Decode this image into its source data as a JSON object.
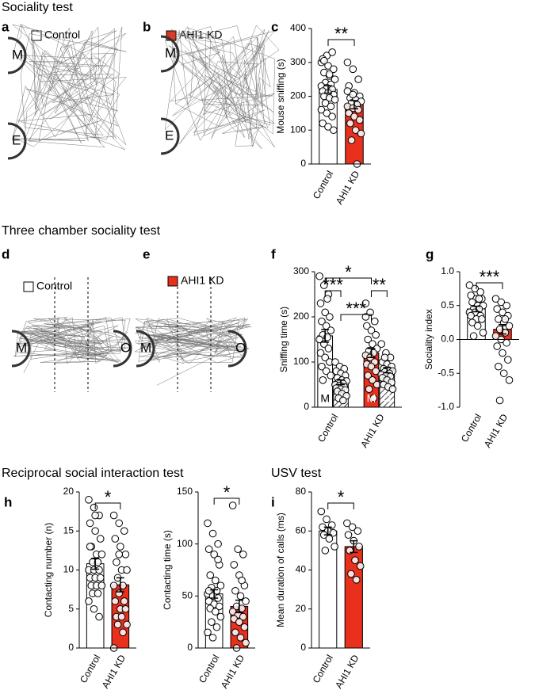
{
  "sections": [
    "Sociality test",
    "Three chamber sociality test",
    "Reciprocal social interaction test",
    "USV test"
  ],
  "track_panels": [
    {
      "letter": "a",
      "legend": "Control",
      "legend_color": "#ffffff",
      "labels": [
        "M",
        "E"
      ]
    },
    {
      "letter": "b",
      "legend": "AHI1 KD",
      "legend_color": "#e8301c",
      "labels": [
        "M",
        "E"
      ]
    },
    {
      "letter": "d",
      "legend": "Control",
      "legend_color": "#ffffff",
      "labels": [
        "M",
        "O"
      ]
    },
    {
      "letter": "e",
      "legend": "AHI1 KD",
      "legend_color": "#e8301c",
      "labels": [
        "M",
        "O"
      ]
    }
  ],
  "chart_data": [
    {
      "type": "bar",
      "letter": "c",
      "ylabel": "Mouse sniffing (s)",
      "categories": [
        "Control",
        "AHI1 KD"
      ],
      "values": [
        220,
        175
      ],
      "errors": [
        11,
        12
      ],
      "colors": [
        "#ffffff",
        "#e8301c"
      ],
      "ylim": [
        0,
        400
      ],
      "yticks": [
        0,
        100,
        200,
        300,
        400
      ],
      "points": [
        [
          300,
          320,
          330,
          310,
          290,
          280,
          270,
          260,
          250,
          240,
          235,
          230,
          225,
          220,
          215,
          210,
          205,
          200,
          195,
          190,
          180,
          170,
          160,
          150,
          140,
          120,
          110,
          100,
          305,
          265
        ],
        [
          300,
          280,
          250,
          230,
          210,
          200,
          195,
          190,
          185,
          180,
          175,
          170,
          165,
          160,
          150,
          140,
          130,
          120,
          100,
          90,
          70,
          0,
          215,
          205
        ]
      ],
      "annotations": [
        {
          "text": "**",
          "from": 0,
          "to": 1
        }
      ]
    },
    {
      "type": "bar",
      "letter": "f",
      "ylabel": "Sniffing time (s)",
      "groups": [
        "Control",
        "AHI1 KD"
      ],
      "categories": [
        "M",
        null,
        "M",
        "O"
      ],
      "values": [
        158,
        55,
        120,
        82
      ],
      "errors": [
        14,
        5,
        10,
        6
      ],
      "colors": [
        "#ffffff",
        "#ffffff",
        "#e8301c",
        "#e8301c"
      ],
      "hatch": [
        false,
        true,
        false,
        true
      ],
      "ylim": [
        0,
        300
      ],
      "yticks": [
        0,
        100,
        200,
        300
      ],
      "points": [
        [
          290,
          270,
          250,
          230,
          210,
          200,
          190,
          180,
          170,
          160,
          155,
          150,
          140,
          130,
          120,
          110,
          100,
          90,
          80,
          70,
          60,
          240
        ],
        [
          100,
          90,
          85,
          80,
          75,
          70,
          65,
          60,
          58,
          55,
          52,
          50,
          48,
          45,
          42,
          40,
          38,
          35,
          30,
          25,
          20,
          15
        ],
        [
          230,
          210,
          190,
          180,
          170,
          160,
          150,
          140,
          130,
          125,
          120,
          115,
          110,
          100,
          95,
          90,
          80,
          70,
          60,
          50,
          40,
          20,
          200
        ],
        [
          140,
          120,
          110,
          100,
          95,
          90,
          85,
          82,
          80,
          78,
          75,
          72,
          70,
          68,
          65,
          60,
          55,
          50,
          45,
          40,
          110
        ]
      ],
      "annotations": [
        {
          "text": "*",
          "from": 0,
          "to": 2
        },
        {
          "text": "***",
          "from": 0,
          "to": 1
        },
        {
          "text": "**",
          "from": 2,
          "to": 3
        },
        {
          "text": "***",
          "from": 1,
          "to": 2
        }
      ]
    },
    {
      "type": "bar",
      "letter": "g",
      "ylabel": "Sociality index",
      "categories": [
        "Control",
        "AHI1 KD"
      ],
      "values": [
        0.45,
        0.15
      ],
      "errors": [
        0.04,
        0.07
      ],
      "colors": [
        "#ffffff",
        "#e8301c"
      ],
      "ylim": [
        -1,
        1
      ],
      "yticks": [
        {
          "value": -1,
          "label": "-1.0"
        },
        {
          "value": -0.5,
          "label": "-0.5"
        },
        {
          "value": 0,
          "label": "0.0"
        },
        {
          "value": 0.5,
          "label": "0.5"
        },
        {
          "value": 1,
          "label": "1.0"
        }
      ],
      "points": [
        [
          0.8,
          0.75,
          0.7,
          0.65,
          0.6,
          0.6,
          0.55,
          0.5,
          0.5,
          0.45,
          0.45,
          0.4,
          0.4,
          0.35,
          0.35,
          0.3,
          0.3,
          0.25,
          0.2,
          0.1,
          0.05,
          0.6
        ],
        [
          0.6,
          0.55,
          0.5,
          0.45,
          0.4,
          0.35,
          0.3,
          0.25,
          0.2,
          0.15,
          0.1,
          0.05,
          0,
          -0.05,
          -0.1,
          -0.2,
          -0.3,
          -0.4,
          -0.5,
          -0.6,
          -0.9,
          0.3
        ]
      ],
      "annotations": [
        {
          "text": "***",
          "from": 0,
          "to": 1
        }
      ]
    },
    {
      "type": "bar",
      "letter": "h",
      "ylabel": "Contacting number (n)",
      "categories": [
        "Control",
        "AHI1 KD"
      ],
      "values": [
        10.8,
        8.1
      ],
      "errors": [
        0.7,
        0.9
      ],
      "colors": [
        "#ffffff",
        "#e8301c"
      ],
      "ylim": [
        0,
        20
      ],
      "yticks": [
        0,
        5,
        10,
        15,
        20
      ],
      "points": [
        [
          19,
          18,
          17,
          16,
          15,
          14,
          13,
          12,
          12,
          11,
          11,
          10,
          10,
          10,
          9,
          9,
          9,
          8,
          8,
          8,
          7,
          7,
          6,
          5,
          4,
          13,
          17
        ],
        [
          17,
          16,
          15,
          14,
          13,
          12,
          11,
          10,
          10,
          9,
          8,
          8,
          7,
          6,
          6,
          5,
          5,
          4,
          4,
          3,
          3,
          2,
          0,
          12
        ]
      ],
      "annotations": [
        {
          "text": "*",
          "from": 0,
          "to": 1
        }
      ]
    },
    {
      "type": "bar",
      "ylabel": "Contacting time (s)",
      "categories": [
        "Control",
        "AHI1 KD"
      ],
      "values": [
        52,
        40
      ],
      "errors": [
        4,
        6
      ],
      "colors": [
        "#ffffff",
        "#e8301c"
      ],
      "ylim": [
        0,
        150
      ],
      "yticks": [
        0,
        50,
        100,
        150
      ],
      "points": [
        [
          120,
          110,
          100,
          95,
          90,
          80,
          70,
          65,
          60,
          58,
          55,
          52,
          50,
          48,
          45,
          42,
          40,
          38,
          35,
          30,
          25,
          20,
          15,
          10,
          85,
          55
        ],
        [
          137,
          95,
          90,
          80,
          70,
          60,
          55,
          50,
          45,
          40,
          38,
          35,
          32,
          30,
          28,
          25,
          20,
          15,
          10,
          5,
          0,
          65
        ]
      ],
      "annotations": [
        {
          "text": "*",
          "from": 0,
          "to": 1
        }
      ]
    },
    {
      "type": "bar",
      "letter": "i",
      "ylabel": "Mean duration of calls (ms)",
      "categories": [
        "Control",
        "AHI1 KD"
      ],
      "values": [
        60,
        52
      ],
      "errors": [
        2,
        3
      ],
      "colors": [
        "#ffffff",
        "#e8301c"
      ],
      "ylim": [
        0,
        80
      ],
      "yticks": [
        0,
        20,
        40,
        60,
        80
      ],
      "points": [
        [
          70,
          66,
          63,
          62,
          60,
          59,
          58,
          56,
          52,
          50
        ],
        [
          64,
          62,
          60,
          58,
          55,
          52,
          50,
          45,
          42,
          38,
          35
        ]
      ],
      "annotations": [
        {
          "text": "*",
          "from": 0,
          "to": 1
        }
      ]
    }
  ]
}
